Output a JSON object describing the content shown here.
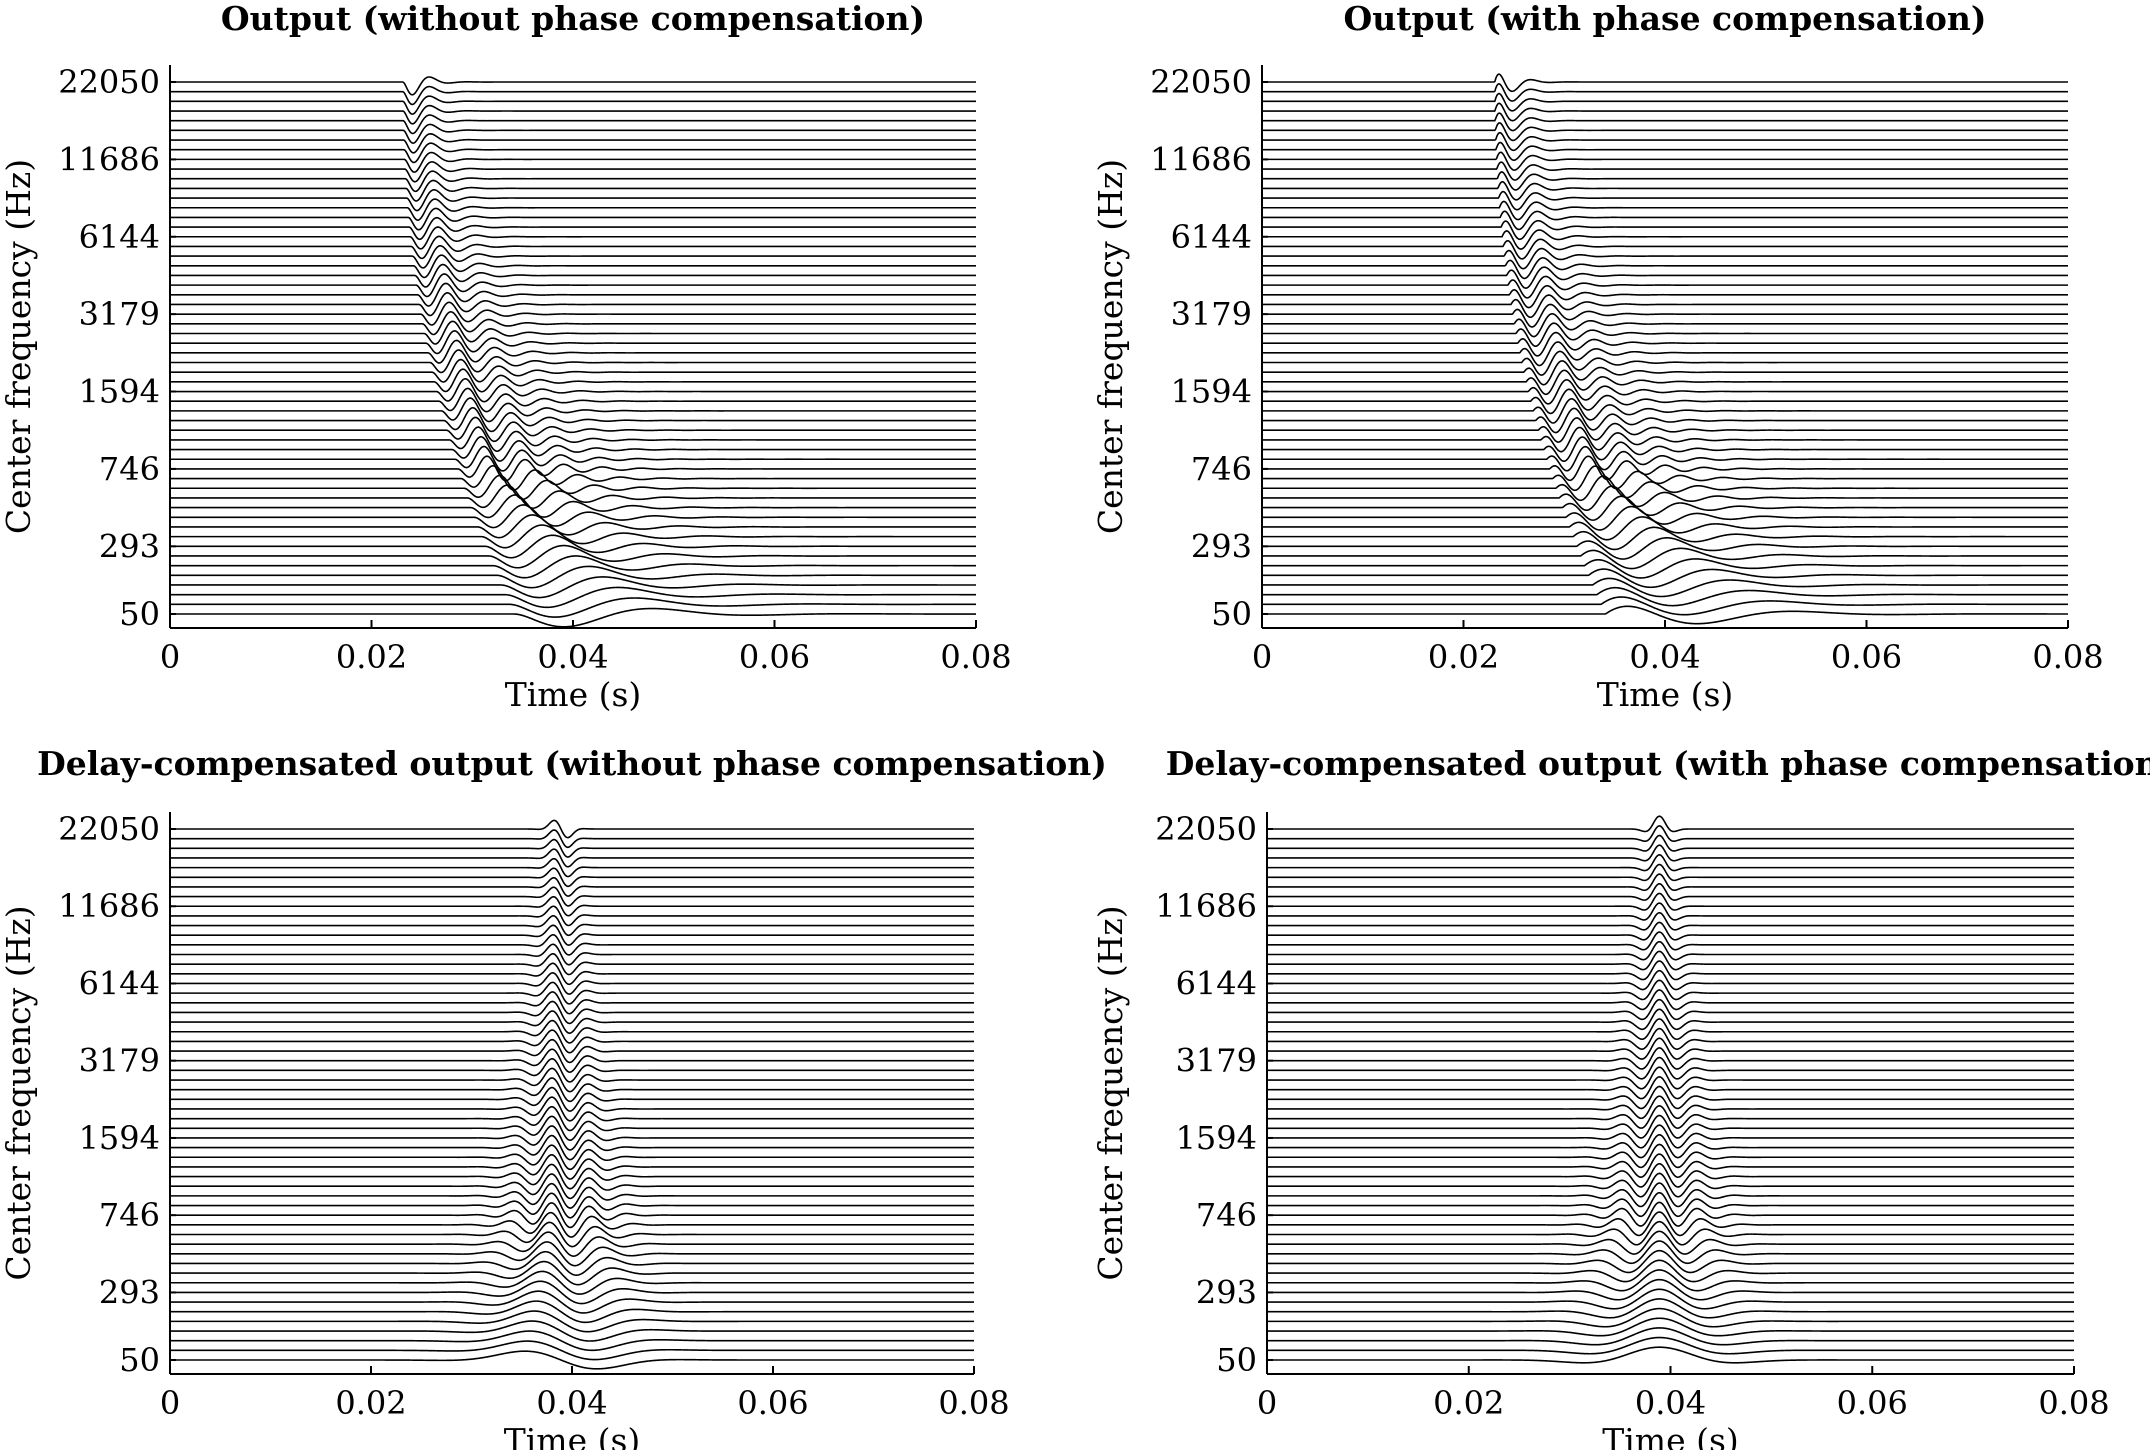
{
  "chart_data": [
    {
      "type": "line",
      "title": "Output (without phase compensation)",
      "xlabel": "Time (s)",
      "ylabel": "Center frequency (Hz)",
      "xlim": [
        0,
        0.08
      ],
      "xticks": [
        0,
        0.02,
        0.04,
        0.06,
        0.08
      ],
      "xtick_labels": [
        "0",
        "0.02",
        "0.04",
        "0.06",
        "0.08"
      ],
      "ytick_labels": [
        "22050",
        "11686",
        "6144",
        "3179",
        "1594",
        "746",
        "293",
        "50"
      ],
      "frequency_range_hz": [
        50,
        22050
      ],
      "channels": 56,
      "pulse_time_s": 0.0235,
      "delay_compensated": false,
      "phase_compensated": false,
      "grid": false
    },
    {
      "type": "line",
      "title": "Output (with phase compensation)",
      "xlabel": "Time (s)",
      "ylabel": "Center frequency (Hz)",
      "xlim": [
        0,
        0.08
      ],
      "xticks": [
        0,
        0.02,
        0.04,
        0.06,
        0.08
      ],
      "xtick_labels": [
        "0",
        "0.02",
        "0.04",
        "0.06",
        "0.08"
      ],
      "ytick_labels": [
        "22050",
        "11686",
        "6144",
        "3179",
        "1594",
        "746",
        "293",
        "50"
      ],
      "frequency_range_hz": [
        50,
        22050
      ],
      "channels": 56,
      "pulse_time_s": 0.0235,
      "delay_compensated": false,
      "phase_compensated": true,
      "grid": false
    },
    {
      "type": "line",
      "title": "Delay-compensated output (without phase compensation)",
      "xlabel": "Time (s)",
      "ylabel": "Center frequency (Hz)",
      "xlim": [
        0,
        0.08
      ],
      "xticks": [
        0,
        0.02,
        0.04,
        0.06,
        0.08
      ],
      "xtick_labels": [
        "0",
        "0.02",
        "0.04",
        "0.06",
        "0.08"
      ],
      "ytick_labels": [
        "22050",
        "11686",
        "6144",
        "3179",
        "1594",
        "746",
        "293",
        "50"
      ],
      "frequency_range_hz": [
        50,
        22050
      ],
      "channels": 56,
      "pulse_time_s": 0.0389,
      "delay_compensated": true,
      "phase_compensated": false,
      "grid": false
    },
    {
      "type": "line",
      "title": "Delay-compensated output (with phase compensation)",
      "xlabel": "Time (s)",
      "ylabel": "Center frequency (Hz)",
      "xlim": [
        0,
        0.08
      ],
      "xticks": [
        0,
        0.02,
        0.04,
        0.06,
        0.08
      ],
      "xtick_labels": [
        "0",
        "0.02",
        "0.04",
        "0.06",
        "0.08"
      ],
      "ytick_labels": [
        "22050",
        "11686",
        "6144",
        "3179",
        "1594",
        "746",
        "293",
        "50"
      ],
      "frequency_range_hz": [
        50,
        22050
      ],
      "channels": 56,
      "pulse_time_s": 0.0389,
      "delay_compensated": true,
      "phase_compensated": true,
      "grid": false
    }
  ]
}
